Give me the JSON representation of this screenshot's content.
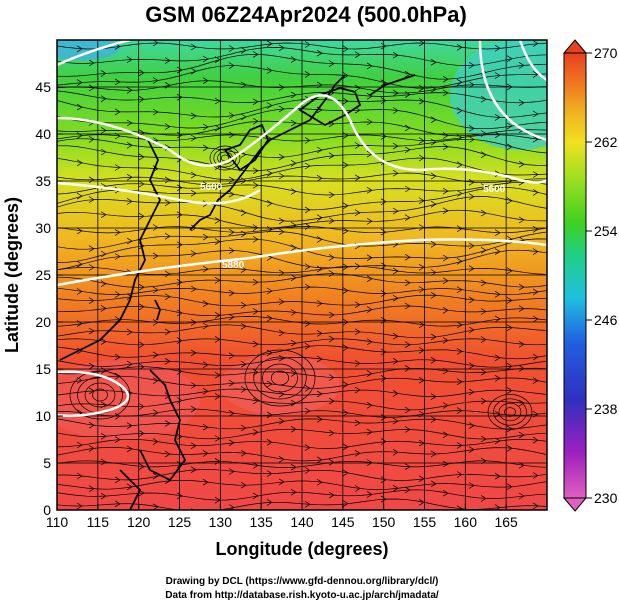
{
  "title": "GSM 06Z24Apr2024 (500.0hPa)",
  "xaxis": {
    "label": "Longitude (degrees)",
    "ticks": [
      "110",
      "115",
      "120",
      "125",
      "130",
      "135",
      "140",
      "145",
      "150",
      "155",
      "160",
      "165"
    ],
    "range": [
      110,
      170
    ]
  },
  "yaxis": {
    "label": "Latitude  (degrees)",
    "ticks": [
      "0",
      "5",
      "10",
      "15",
      "20",
      "25",
      "30",
      "35",
      "40",
      "45"
    ],
    "range": [
      0,
      50
    ]
  },
  "colorbar": {
    "ticks": [
      "270",
      "262",
      "254",
      "246",
      "238",
      "230"
    ],
    "range": [
      230,
      270
    ],
    "colors": [
      "#e060c0",
      "#a020c0",
      "#3030c0",
      "#2060e0",
      "#20c0e0",
      "#20d080",
      "#40d020",
      "#a0e020",
      "#f0e020",
      "#f0b020",
      "#f07020",
      "#e84020"
    ]
  },
  "contours": {
    "labels": [
      "5600",
      "5600",
      "5880"
    ]
  },
  "credits": {
    "line1": "Drawing by DCL (https://www.gfd-dennou.org/library/dcl/)",
    "line2": "Data from http://database.rish.kyoto-u.ac.jp/arch/jmadata/"
  }
}
